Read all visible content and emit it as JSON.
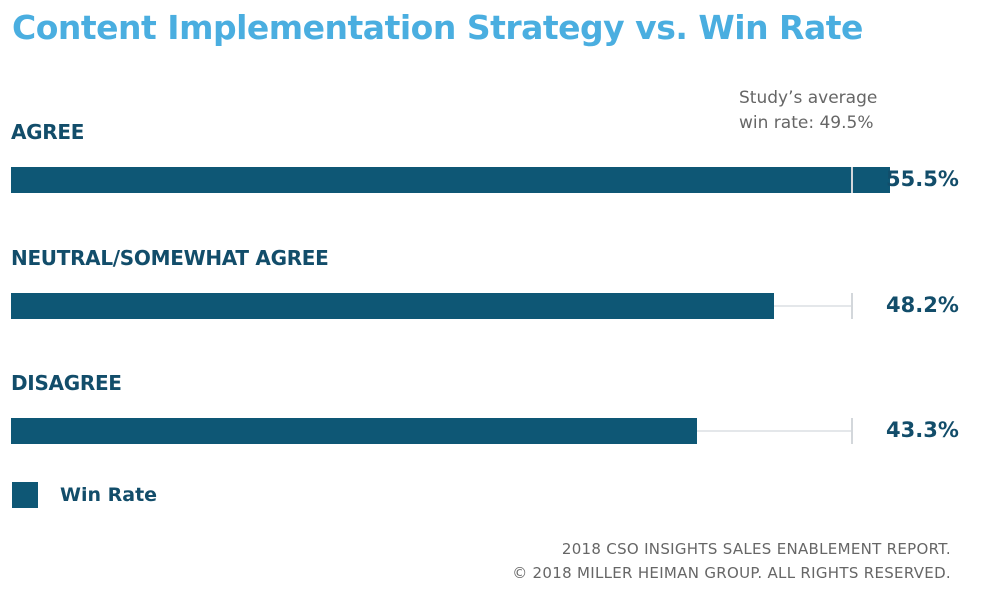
{
  "colors": {
    "title": "#4aaee0",
    "bar": "#0e5775",
    "label": "#124d6a",
    "note": "#666666",
    "track": "#e4e7ea",
    "average_tick": "#d3d7db"
  },
  "chart_data": {
    "type": "bar",
    "orientation": "horizontal",
    "title": "Content Implementation Strategy vs. Win Rate",
    "categories": [
      "AGREE",
      "NEUTRAL/SOMEWHAT AGREE",
      "DISAGREE"
    ],
    "series": [
      {
        "name": "Win Rate",
        "values": [
          55.5,
          48.2,
          43.3
        ]
      }
    ],
    "value_labels": [
      "55.5%",
      "48.2%",
      "43.3%"
    ],
    "xlim": [
      0,
      60
    ],
    "reference_value": 49.5,
    "reference_note": [
      "Study’s average",
      "win rate: 49.5%"
    ],
    "legend": "bottom-left",
    "grid": false,
    "footer": [
      "2018 CSO INSIGHTS SALES ENABLEMENT REPORT.",
      "© 2018 MILLER HEIMAN GROUP. ALL RIGHTS RESERVED."
    ]
  }
}
